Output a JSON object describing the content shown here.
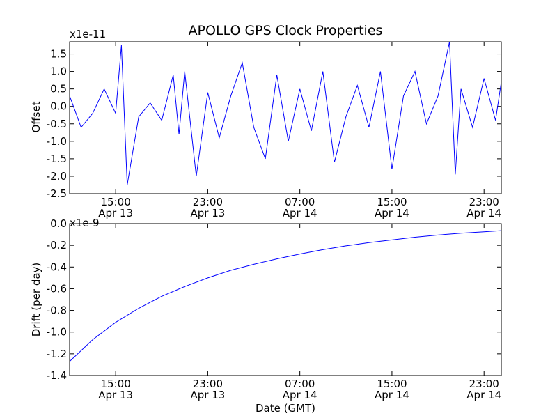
{
  "chart_data": [
    {
      "type": "line",
      "title": "APOLLO GPS Clock Properties",
      "ylabel": "Offset",
      "xlabel": "",
      "y_exponent_label": "x1e-11",
      "x_range": [
        "2013-04-13 11:00",
        "2013-04-15 00:30"
      ],
      "ylim": [
        -2.5,
        1.85
      ],
      "y_ticks": [
        {
          "value": -2.5,
          "label": "-2.5"
        },
        {
          "value": -2.0,
          "label": "-2.0"
        },
        {
          "value": -1.5,
          "label": "-1.5"
        },
        {
          "value": -1.0,
          "label": "-1.0"
        },
        {
          "value": -0.5,
          "label": "-0.5"
        },
        {
          "value": 0.0,
          "label": "0.0"
        },
        {
          "value": 0.5,
          "label": "0.5"
        },
        {
          "value": 1.0,
          "label": "1.0"
        },
        {
          "value": 1.5,
          "label": "1.5"
        }
      ],
      "x_ticks": [
        {
          "time": "2013-04-13 15:00",
          "label_top": "15:00",
          "label_bottom": "Apr 13"
        },
        {
          "time": "2013-04-13 23:00",
          "label_top": "23:00",
          "label_bottom": "Apr 13"
        },
        {
          "time": "2013-04-14 07:00",
          "label_top": "07:00",
          "label_bottom": "Apr 14"
        },
        {
          "time": "2013-04-14 15:00",
          "label_top": "15:00",
          "label_bottom": "Apr 14"
        },
        {
          "time": "2013-04-14 23:00",
          "label_top": "23:00",
          "label_bottom": "Apr 14"
        }
      ],
      "grid": false,
      "color": "#0000ff",
      "series": [
        {
          "x": [
            "2013-04-13 11:00",
            "2013-04-13 12:00",
            "2013-04-13 13:00",
            "2013-04-13 14:00",
            "2013-04-13 15:00",
            "2013-04-13 15:30",
            "2013-04-13 16:00",
            "2013-04-13 17:00",
            "2013-04-13 18:00",
            "2013-04-13 19:00",
            "2013-04-13 20:00",
            "2013-04-13 20:30",
            "2013-04-13 21:00",
            "2013-04-13 22:00",
            "2013-04-13 23:00",
            "2013-04-14 00:00",
            "2013-04-14 01:00",
            "2013-04-14 02:00",
            "2013-04-14 03:00",
            "2013-04-14 04:00",
            "2013-04-14 05:00",
            "2013-04-14 06:00",
            "2013-04-14 07:00",
            "2013-04-14 08:00",
            "2013-04-14 09:00",
            "2013-04-14 10:00",
            "2013-04-14 11:00",
            "2013-04-14 12:00",
            "2013-04-14 13:00",
            "2013-04-14 14:00",
            "2013-04-14 15:00",
            "2013-04-14 16:00",
            "2013-04-14 17:00",
            "2013-04-14 18:00",
            "2013-04-14 19:00",
            "2013-04-14 20:00",
            "2013-04-14 20:30",
            "2013-04-14 21:00",
            "2013-04-14 22:00",
            "2013-04-14 23:00",
            "2013-04-15 00:00",
            "2013-04-15 00:30"
          ],
          "values": [
            0.3,
            -0.6,
            -0.2,
            0.5,
            -0.2,
            1.75,
            -2.25,
            -0.3,
            0.1,
            -0.4,
            0.9,
            -0.8,
            1.0,
            -2.0,
            0.4,
            -0.9,
            0.3,
            1.25,
            -0.6,
            -1.5,
            0.9,
            -1.0,
            0.5,
            -0.7,
            1.0,
            -1.6,
            -0.3,
            0.6,
            -0.6,
            1.0,
            -1.8,
            0.3,
            1.0,
            -0.5,
            0.3,
            1.85,
            -1.95,
            0.5,
            -0.6,
            0.8,
            -0.4,
            0.7
          ]
        }
      ]
    },
    {
      "type": "line",
      "title": "",
      "ylabel": "Drift (per day)",
      "xlabel": "Date (GMT)",
      "y_exponent_label": "x1e-9",
      "x_range": [
        "2013-04-13 11:00",
        "2013-04-15 00:30"
      ],
      "ylim": [
        -1.4,
        0.0
      ],
      "y_ticks": [
        {
          "value": -1.4,
          "label": "-1.4"
        },
        {
          "value": -1.2,
          "label": "-1.2"
        },
        {
          "value": -1.0,
          "label": "-1.0"
        },
        {
          "value": -0.8,
          "label": "-0.8"
        },
        {
          "value": -0.6,
          "label": "-0.6"
        },
        {
          "value": -0.4,
          "label": "-0.4"
        },
        {
          "value": -0.2,
          "label": "-0.2"
        },
        {
          "value": 0.0,
          "label": "0.0"
        }
      ],
      "x_ticks": [
        {
          "time": "2013-04-13 15:00",
          "label_top": "15:00",
          "label_bottom": "Apr 13"
        },
        {
          "time": "2013-04-13 23:00",
          "label_top": "23:00",
          "label_bottom": "Apr 13"
        },
        {
          "time": "2013-04-14 07:00",
          "label_top": "07:00",
          "label_bottom": "Apr 14"
        },
        {
          "time": "2013-04-14 15:00",
          "label_top": "15:00",
          "label_bottom": "Apr 14"
        },
        {
          "time": "2013-04-14 23:00",
          "label_top": "23:00",
          "label_bottom": "Apr 14"
        }
      ],
      "grid": false,
      "color": "#0000ff",
      "series": [
        {
          "x": [
            "2013-04-13 11:00",
            "2013-04-13 13:00",
            "2013-04-13 15:00",
            "2013-04-13 17:00",
            "2013-04-13 19:00",
            "2013-04-13 21:00",
            "2013-04-13 23:00",
            "2013-04-14 01:00",
            "2013-04-14 03:00",
            "2013-04-14 05:00",
            "2013-04-14 07:00",
            "2013-04-14 09:00",
            "2013-04-14 11:00",
            "2013-04-14 13:00",
            "2013-04-14 15:00",
            "2013-04-14 17:00",
            "2013-04-14 19:00",
            "2013-04-14 21:00",
            "2013-04-14 23:00",
            "2013-04-15 00:30"
          ],
          "values": [
            -1.27,
            -1.07,
            -0.91,
            -0.78,
            -0.67,
            -0.58,
            -0.5,
            -0.43,
            -0.375,
            -0.325,
            -0.28,
            -0.24,
            -0.205,
            -0.175,
            -0.15,
            -0.125,
            -0.105,
            -0.088,
            -0.075,
            -0.065
          ]
        }
      ]
    }
  ]
}
